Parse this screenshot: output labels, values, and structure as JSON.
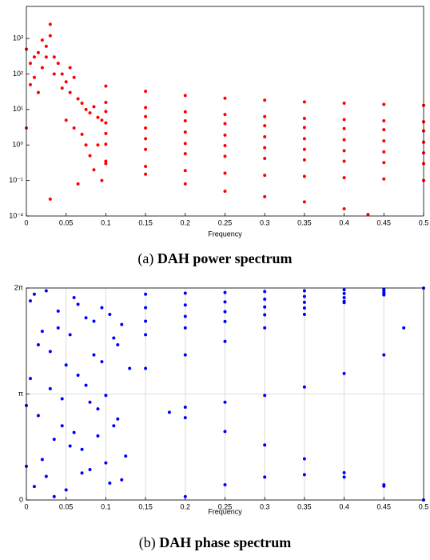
{
  "chart_data": [
    {
      "type": "scatter",
      "xlabel": "Frequency",
      "caption_label": "(a)",
      "caption_title": "DAH power spectrum",
      "color": "#ff0000",
      "log_y": true,
      "grid": false,
      "xlim": [
        0,
        0.5
      ],
      "xticks": [
        0,
        0.05,
        0.1,
        0.15,
        0.2,
        0.25,
        0.3,
        0.35,
        0.4,
        0.45,
        0.5
      ],
      "ylim": [
        0.01,
        8000
      ],
      "yticks": [
        {
          "value": 0.01,
          "label": "10⁻²"
        },
        {
          "value": 0.1,
          "label": "10⁻¹"
        },
        {
          "value": 1,
          "label": "10⁰"
        },
        {
          "value": 10,
          "label": "10¹"
        },
        {
          "value": 100,
          "label": "10²"
        },
        {
          "value": 1000,
          "label": "10³"
        }
      ],
      "x": [
        0,
        0.005,
        0.01,
        0.015,
        0.02,
        0.025,
        0.03,
        0.035,
        0.04,
        0.045,
        0.05,
        0.055,
        0.06,
        0.065,
        0.07,
        0.075,
        0.08,
        0.085,
        0.09,
        0.095,
        0,
        0.005,
        0.01,
        0.015,
        0.02,
        0.025,
        0.03,
        0.035,
        0.03,
        0.045,
        0.05,
        0.055,
        0.06,
        0.065,
        0.07,
        0.075,
        0.08,
        0.085,
        0.09,
        0.095,
        0.1,
        0.15,
        0.2,
        0.25,
        0.3,
        0.35,
        0.4,
        0.45,
        0.5,
        0.1,
        0.15,
        0.2,
        0.25,
        0.3,
        0.35,
        0.4,
        0.45,
        0.5,
        0.1,
        0.15,
        0.2,
        0.25,
        0.3,
        0.35,
        0.4,
        0.45,
        0.5,
        0.1,
        0.15,
        0.2,
        0.25,
        0.3,
        0.35,
        0.4,
        0.45,
        0.5,
        0.1,
        0.15,
        0.2,
        0.25,
        0.3,
        0.35,
        0.4,
        0.45,
        0.5,
        0.1,
        0.15,
        0.2,
        0.25,
        0.3,
        0.35,
        0.4,
        0.45,
        0.5,
        0.1,
        0.15,
        0.2,
        0.25,
        0.3,
        0.35,
        0.4,
        0.45,
        0.5,
        0.1,
        0.15,
        0.2,
        0.25,
        0.3,
        0.35,
        0.4,
        0.43
      ],
      "y": [
        3,
        200,
        80,
        400,
        150,
        600,
        2500,
        300,
        200,
        100,
        60,
        30,
        80,
        20,
        15,
        10,
        8,
        12,
        6,
        5,
        500,
        50,
        300,
        30,
        900,
        300,
        1200,
        100,
        0.03,
        40,
        5,
        150,
        3,
        0.08,
        2,
        1,
        0.5,
        0.2,
        1,
        0.1,
        45.5,
        32.5,
        24.7,
        20.8,
        18.2,
        16.3,
        15,
        13.9,
        13,
        15.8,
        11.3,
        8.6,
        7.2,
        6.3,
        5.6,
        5.2,
        4.8,
        4.5,
        8.8,
        6.3,
        4.8,
        4,
        3.5,
        3.1,
        2.9,
        2.7,
        2.5,
        4.2,
        3,
        2.3,
        1.9,
        1.7,
        1.5,
        1.4,
        1.3,
        1.2,
        2.1,
        1.5,
        1.1,
        0.96,
        0.84,
        0.75,
        0.69,
        0.64,
        0.6,
        1.05,
        0.75,
        0.57,
        0.48,
        0.42,
        0.38,
        0.35,
        0.32,
        0.3,
        0.35,
        0.25,
        0.19,
        0.16,
        0.14,
        0.13,
        0.12,
        0.11,
        0.1,
        0.3,
        0.15,
        0.08,
        0.05,
        0.035,
        0.025,
        0.016,
        0.011
      ]
    },
    {
      "type": "scatter",
      "xlabel": "Frequency",
      "caption_label": "(b)",
      "caption_title": "DAH phase spectrum",
      "color": "#0000ff",
      "log_y": false,
      "grid": true,
      "xlim": [
        0,
        0.5
      ],
      "xticks": [
        0,
        0.05,
        0.1,
        0.15,
        0.2,
        0.25,
        0.3,
        0.35,
        0.4,
        0.45,
        0.5
      ],
      "ylim": [
        0,
        6.28319
      ],
      "yticks": [
        0,
        {
          "value": 3.14159,
          "label": "π"
        },
        {
          "value": 6.28319,
          "label": "2π"
        }
      ],
      "x": [
        0,
        0.005,
        0.01,
        0.015,
        0.02,
        0.025,
        0.03,
        0.035,
        0.04,
        0.045,
        0.05,
        0.055,
        0.06,
        0.065,
        0.07,
        0.075,
        0.08,
        0.085,
        0.09,
        0.095,
        0.1,
        0.105,
        0.11,
        0.115,
        0.12,
        0.125,
        0.13,
        0,
        0.005,
        0.01,
        0.015,
        0.02,
        0.025,
        0.03,
        0.035,
        0.04,
        0.045,
        0.05,
        0.055,
        0.06,
        0.065,
        0.07,
        0.075,
        0.08,
        0.085,
        0.09,
        0.095,
        0.1,
        0.105,
        0.11,
        0.115,
        0.12,
        0.15,
        0.2,
        0.25,
        0.3,
        0.35,
        0.4,
        0.45,
        0.5,
        0.15,
        0.2,
        0.25,
        0.3,
        0.35,
        0.4,
        0.45,
        0.15,
        0.2,
        0.25,
        0.3,
        0.35,
        0.4,
        0.45,
        0.15,
        0.2,
        0.25,
        0.3,
        0.35,
        0.4,
        0.45,
        0.2,
        0.25,
        0.3,
        0.35,
        0.4,
        0.45,
        0.475,
        0.15,
        0.2,
        0.25,
        0.3,
        0.35,
        0.4,
        0.45,
        0.18,
        0.2,
        0.25,
        0.3,
        0.35,
        0.4,
        0.45,
        0.5,
        0.2,
        0.25,
        0.3,
        0.35,
        0.4,
        0.45
      ],
      "y": [
        2.8,
        5.9,
        0.4,
        4.6,
        1.2,
        6.2,
        3.3,
        0.1,
        5.1,
        2.2,
        4.0,
        1.6,
        6.0,
        3.7,
        0.8,
        5.4,
        2.9,
        4.3,
        1.9,
        5.7,
        3.1,
        0.5,
        4.8,
        2.4,
        5.2,
        1.3,
        3.9,
        1.0,
        3.6,
        6.1,
        2.5,
        5.0,
        0.7,
        4.4,
        1.8,
        5.6,
        3.0,
        0.3,
        4.9,
        2.0,
        5.8,
        1.5,
        3.4,
        0.9,
        5.3,
        2.7,
        4.1,
        1.1,
        5.5,
        2.2,
        4.6,
        0.6,
        6.1,
        6.13,
        6.15,
        6.18,
        6.2,
        6.23,
        6.25,
        6.28,
        5.7,
        5.78,
        5.87,
        5.95,
        6.03,
        6.12,
        6.2,
        5.3,
        5.44,
        5.58,
        5.72,
        5.86,
        6.0,
        6.14,
        4.9,
        5.1,
        5.29,
        5.49,
        5.69,
        5.89,
        6.08,
        2.75,
        2.9,
        3.1,
        3.35,
        3.75,
        4.3,
        5.1,
        3.9,
        4.3,
        4.7,
        5.1,
        5.5,
        5.85,
        6.1,
        2.6,
        2.44,
        2.03,
        1.63,
        1.22,
        0.81,
        0.41,
        0,
        0.1,
        0.45,
        0.68,
        0.75,
        0.68,
        0.45
      ]
    }
  ]
}
